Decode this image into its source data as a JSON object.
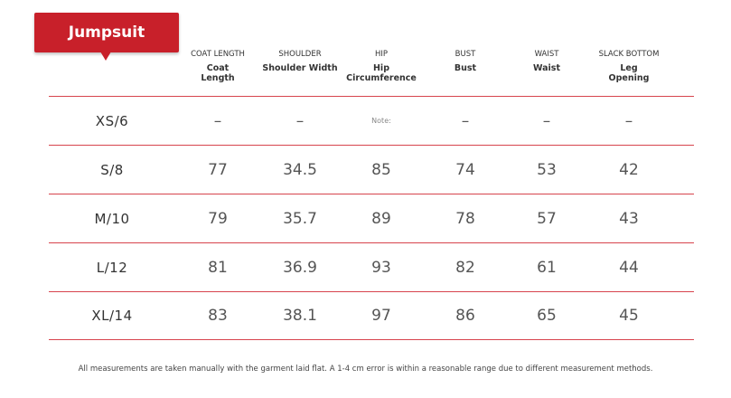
{
  "tag": {
    "title": "Jumpsuit"
  },
  "columns": [
    {
      "en": "COAT LENGTH",
      "sub1": "Coat",
      "sub2": "Length"
    },
    {
      "en": "SHOULDER",
      "sub1": "",
      "sub2": "Shoulder Width"
    },
    {
      "en": "HIP",
      "sub1": "Hip",
      "sub2": "Circumference"
    },
    {
      "en": "BUST",
      "sub1": "",
      "sub2": "Bust"
    },
    {
      "en": "WAIST",
      "sub1": "",
      "sub2": "Waist"
    },
    {
      "en": "SLACK BOTTOM",
      "sub1": "Leg",
      "sub2": "Opening"
    }
  ],
  "rows": [
    {
      "size": "XS/6",
      "values": [
        "–",
        "–",
        "Note:",
        "–",
        "–",
        "–"
      ]
    },
    {
      "size": "S/8",
      "values": [
        "77",
        "34.5",
        "85",
        "74",
        "53",
        "42"
      ]
    },
    {
      "size": "M/10",
      "values": [
        "79",
        "35.7",
        "89",
        "78",
        "57",
        "43"
      ]
    },
    {
      "size": "L/12",
      "values": [
        "81",
        "36.9",
        "93",
        "82",
        "61",
        "44"
      ]
    },
    {
      "size": "XL/14",
      "values": [
        "83",
        "38.1",
        "97",
        "86",
        "65",
        "45"
      ]
    }
  ],
  "footer": {
    "note": "All measurements are taken manually with the garment laid flat. A 1-4 cm error is within a reasonable range due to different measurement methods."
  }
}
